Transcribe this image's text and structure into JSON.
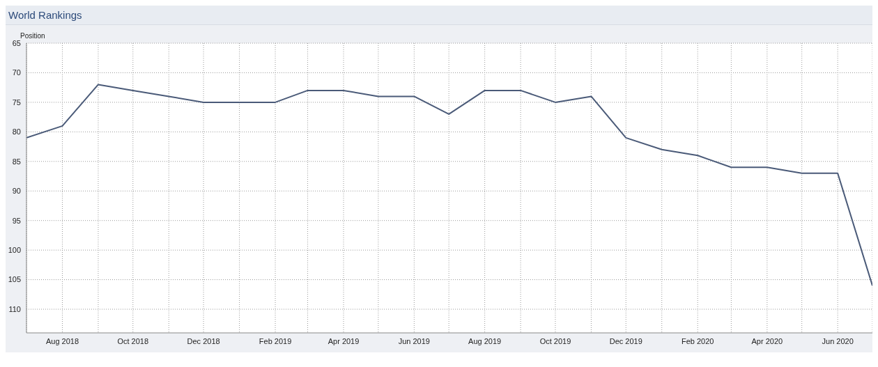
{
  "chart_data": {
    "type": "line",
    "title": "World Rankings",
    "ylabel": "Position",
    "x": [
      "2018-07",
      "2018-08",
      "2018-09",
      "2018-10",
      "2018-11",
      "2018-12",
      "2019-01",
      "2019-02",
      "2019-03",
      "2019-04",
      "2019-05",
      "2019-06",
      "2019-07",
      "2019-08",
      "2019-09",
      "2019-10",
      "2019-11",
      "2019-12",
      "2020-01",
      "2020-02",
      "2020-03",
      "2020-04",
      "2020-05",
      "2020-06",
      "2020-07"
    ],
    "series": [
      {
        "color": "#4a5a78",
        "values": [
          81,
          79,
          72,
          73,
          74,
          75,
          75,
          75,
          73,
          73,
          74,
          74,
          77,
          73,
          73,
          75,
          74,
          81,
          83,
          84,
          86,
          86,
          87,
          87,
          106
        ]
      }
    ],
    "xlim": [
      "2018-07",
      "2020-07"
    ],
    "xticks": [
      {
        "value": "2018-07",
        "label": null
      },
      {
        "value": "2018-08",
        "label": "Aug 2018"
      },
      {
        "value": "2018-09",
        "label": null
      },
      {
        "value": "2018-10",
        "label": "Oct 2018"
      },
      {
        "value": "2018-11",
        "label": null
      },
      {
        "value": "2018-12",
        "label": "Dec 2018"
      },
      {
        "value": "2019-01",
        "label": null
      },
      {
        "value": "2019-02",
        "label": "Feb 2019"
      },
      {
        "value": "2019-03",
        "label": null
      },
      {
        "value": "2019-04",
        "label": "Apr 2019"
      },
      {
        "value": "2019-05",
        "label": null
      },
      {
        "value": "2019-06",
        "label": "Jun 2019"
      },
      {
        "value": "2019-07",
        "label": null
      },
      {
        "value": "2019-08",
        "label": "Aug 2019"
      },
      {
        "value": "2019-09",
        "label": null
      },
      {
        "value": "2019-10",
        "label": "Oct 2019"
      },
      {
        "value": "2019-11",
        "label": null
      },
      {
        "value": "2019-12",
        "label": "Dec 2019"
      },
      {
        "value": "2020-01",
        "label": null
      },
      {
        "value": "2020-02",
        "label": "Feb 2020"
      },
      {
        "value": "2020-03",
        "label": null
      },
      {
        "value": "2020-04",
        "label": "Apr 2020"
      },
      {
        "value": "2020-05",
        "label": null
      },
      {
        "value": "2020-06",
        "label": "Jun 2020"
      },
      {
        "value": "2020-07",
        "label": null
      }
    ],
    "ylim": [
      114,
      65
    ],
    "yticks": [
      65,
      70,
      75,
      80,
      85,
      90,
      95,
      100,
      105,
      110
    ],
    "grid": true,
    "marker": "none",
    "line_style": "solid"
  }
}
